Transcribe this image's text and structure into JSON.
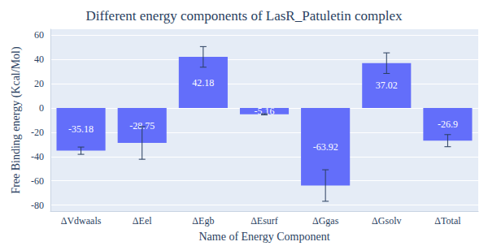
{
  "chart_data": {
    "type": "bar",
    "title": "Different energy components of LasR_Patuletin complex",
    "x_label": "Name of Energy Component",
    "y_label": "Free Binding energy (Kcal/Mol)",
    "categories": [
      "ΔVdwaals",
      "ΔEel",
      "ΔEgb",
      "ΔEsurf",
      "ΔGgas",
      "ΔGsolv",
      "ΔTotal"
    ],
    "values": [
      -35.18,
      -28.75,
      42.18,
      -5.16,
      -63.92,
      37.02,
      -26.9
    ],
    "errors": [
      3,
      13.5,
      8.5,
      0.5,
      13,
      8.5,
      5
    ],
    "color": "#636efa",
    "ylim": [
      -85,
      65
    ],
    "yticks": [
      -80,
      -60,
      -40,
      -20,
      0,
      20,
      40,
      60
    ],
    "grid": true,
    "data_labels": true
  }
}
